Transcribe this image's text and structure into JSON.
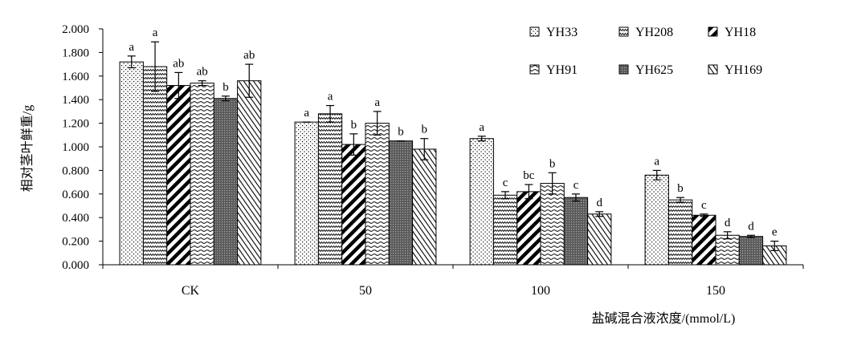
{
  "chart_data": {
    "type": "bar",
    "title": "",
    "xlabel": "盐碱混合液浓度/(mmol/L)",
    "ylabel": "相对茎叶鲜重/g",
    "ylim": [
      0,
      2.0
    ],
    "yticks": [
      "0.000",
      "0.200",
      "0.400",
      "0.600",
      "0.800",
      "1.000",
      "1.200",
      "1.400",
      "1.600",
      "1.800",
      "2.000"
    ],
    "categories": [
      "CK",
      "50",
      "100",
      "150"
    ],
    "grid": false,
    "legend_position": "top-right",
    "series": [
      {
        "name": "YH33",
        "pattern": "dots",
        "values": [
          1.72,
          1.21,
          1.07,
          0.76
        ],
        "errors": [
          0.05,
          0.0,
          0.02,
          0.04
        ],
        "letters": [
          "a",
          "a",
          "a",
          "a"
        ]
      },
      {
        "name": "YH208",
        "pattern": "zigzag",
        "values": [
          1.68,
          1.28,
          0.59,
          0.55
        ],
        "errors": [
          0.21,
          0.07,
          0.03,
          0.02
        ],
        "letters": [
          "a",
          "a",
          "c",
          "b"
        ]
      },
      {
        "name": "YH18",
        "pattern": "diag-thick",
        "values": [
          1.52,
          1.02,
          0.62,
          0.42
        ],
        "errors": [
          0.11,
          0.09,
          0.06,
          0.01
        ],
        "letters": [
          "ab",
          "b",
          "bc",
          "c"
        ]
      },
      {
        "name": "YH91",
        "pattern": "hwave",
        "values": [
          1.54,
          1.2,
          0.69,
          0.25
        ],
        "errors": [
          0.02,
          0.1,
          0.09,
          0.03
        ],
        "letters": [
          "ab",
          "a",
          "b",
          "d"
        ]
      },
      {
        "name": "YH625",
        "pattern": "grid-dark",
        "values": [
          1.41,
          1.05,
          0.57,
          0.24
        ],
        "errors": [
          0.02,
          0.0,
          0.03,
          0.01
        ],
        "letters": [
          "b",
          "b",
          "c",
          "d"
        ]
      },
      {
        "name": "YH169",
        "pattern": "diag-thin",
        "values": [
          1.56,
          0.98,
          0.43,
          0.16
        ],
        "errors": [
          0.14,
          0.09,
          0.02,
          0.04
        ],
        "letters": [
          "ab",
          "b",
          "d",
          "e"
        ]
      }
    ]
  }
}
